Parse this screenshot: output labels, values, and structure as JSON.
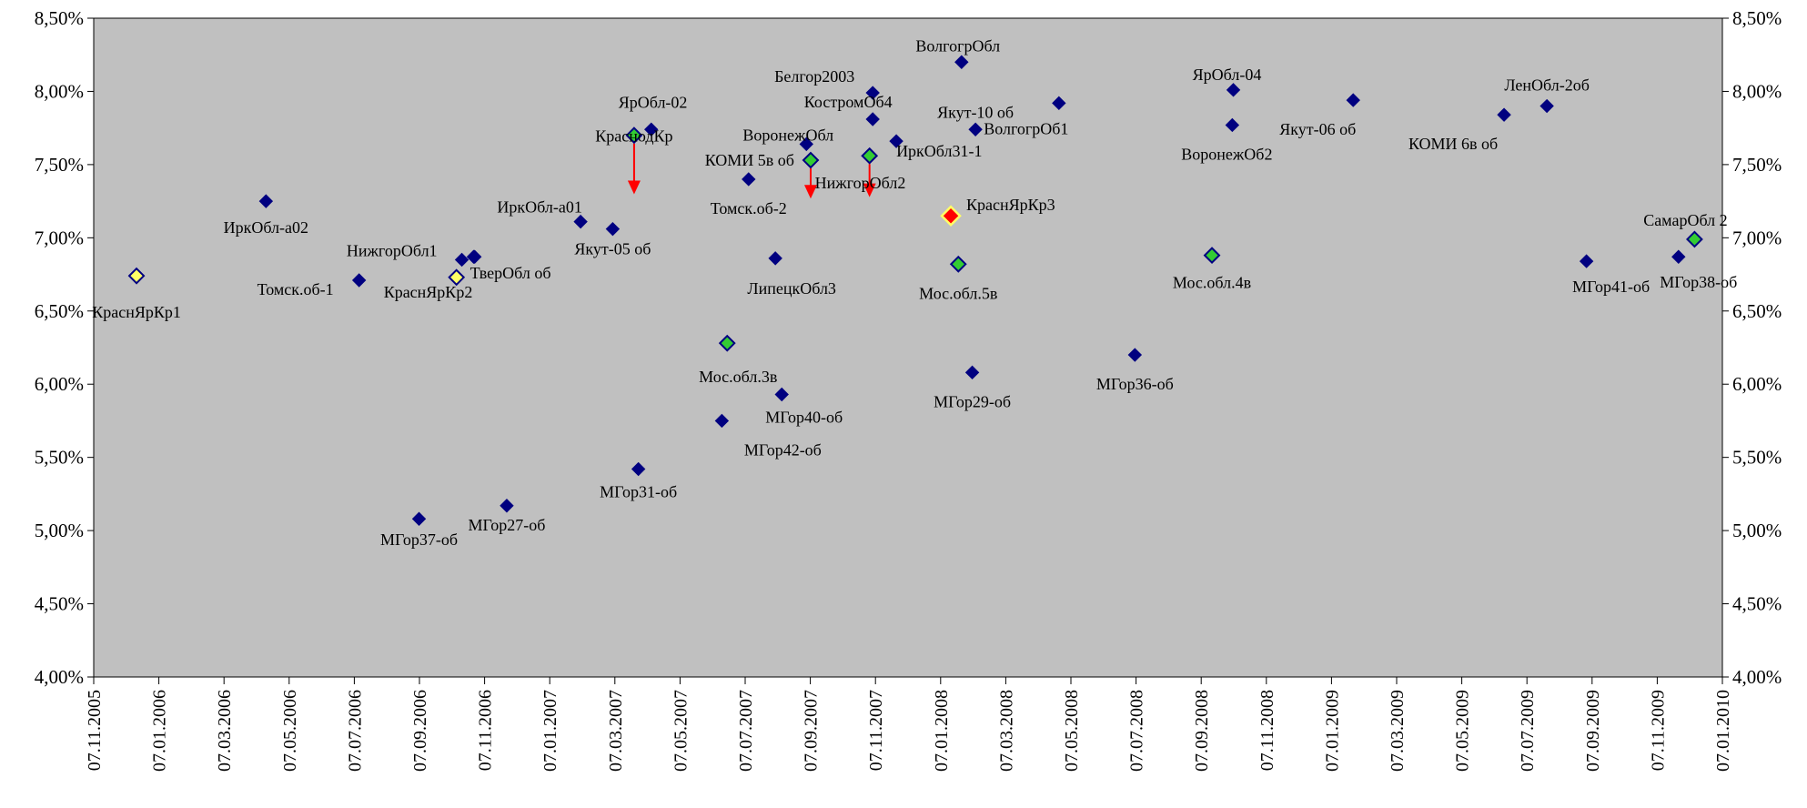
{
  "chart_data": {
    "type": "scatter",
    "x_axis": {
      "type": "date",
      "min": "2005-11-07",
      "max": "2010-01-07",
      "tick_labels": [
        "07.11.2005",
        "07.01.2006",
        "07.03.2006",
        "07.05.2006",
        "07.07.2006",
        "07.09.2006",
        "07.11.2006",
        "07.01.2007",
        "07.03.2007",
        "07.05.2007",
        "07.07.2007",
        "07.09.2007",
        "07.11.2007",
        "07.01.2008",
        "07.03.2008",
        "07.05.2008",
        "07.07.2008",
        "07.09.2008",
        "07.11.2008",
        "07.01.2009",
        "07.03.2009",
        "07.05.2009",
        "07.07.2009",
        "07.09.2009",
        "07.11.2009",
        "07.01.2010"
      ]
    },
    "y_axis": {
      "min": 4.0,
      "max": 8.5,
      "tick_labels": [
        "4,00%",
        "4,50%",
        "5,00%",
        "5,50%",
        "6,00%",
        "6,50%",
        "7,00%",
        "7,50%",
        "8,00%",
        "8,50%"
      ],
      "tick_values": [
        4.0,
        4.5,
        5.0,
        5.5,
        6.0,
        6.5,
        7.0,
        7.5,
        8.0,
        8.5
      ]
    },
    "colors": {
      "plot_background": "#c0c0c0",
      "navy": "#000080",
      "green": "#33cc33",
      "yellow": "#ffff66",
      "red": "#ff0000",
      "arrow": "#ff0000"
    },
    "points": [
      {
        "label": "КраснЯрКр1",
        "date": "2005-12-17",
        "y": 6.74,
        "style": "yellow"
      },
      {
        "label": "ИркОбл-а02",
        "date": "2006-04-17",
        "y": 7.25,
        "style": "navy"
      },
      {
        "label": "Томск.об-1",
        "date": "2006-07-13",
        "y": 6.71,
        "style": "navy"
      },
      {
        "label": "НижгорОбл1",
        "date": "2006-10-17",
        "y": 6.85,
        "style": "navy"
      },
      {
        "label": "",
        "date": "2006-10-28",
        "y": 6.87,
        "style": "navy"
      },
      {
        "label": "КраснЯрКр2",
        "date": "2006-10-12",
        "y": 6.73,
        "style": "yellow"
      },
      {
        "label": "ТверОбл об",
        "date": "2006-10-29",
        "y": 6.87,
        "style": "navy"
      },
      {
        "label": "ИркОбл-а01",
        "date": "2007-02-05",
        "y": 7.11,
        "style": "navy"
      },
      {
        "label": "МГор37-об",
        "date": "2006-09-07",
        "y": 5.08,
        "style": "navy"
      },
      {
        "label": "МГор27-об",
        "date": "2006-11-28",
        "y": 5.17,
        "style": "navy"
      },
      {
        "label": "Якут-05 об",
        "date": "2007-03-07",
        "y": 7.06,
        "style": "navy"
      },
      {
        "label": "МГор31-об",
        "date": "2007-03-31",
        "y": 5.42,
        "style": "navy"
      },
      {
        "label": "ЯрОбл-02",
        "date": "2007-04-12",
        "y": 7.74,
        "style": "navy"
      },
      {
        "label": "КраснодКр",
        "date": "2007-03-27",
        "y": 7.7,
        "style": "green",
        "arrow_to": 7.31
      },
      {
        "label": "МГор42-об",
        "date": "2007-06-17",
        "y": 5.75,
        "style": "navy"
      },
      {
        "label": "Мос.обл.3в",
        "date": "2007-06-22",
        "y": 6.28,
        "style": "green"
      },
      {
        "label": "Томск.об-2",
        "date": "2007-07-12",
        "y": 7.4,
        "style": "navy"
      },
      {
        "label": "ЛипецкОбл3",
        "date": "2007-08-06",
        "y": 6.86,
        "style": "navy"
      },
      {
        "label": "МГор40-об",
        "date": "2007-08-12",
        "y": 5.93,
        "style": "navy"
      },
      {
        "label": "ВоронежОбл",
        "date": "2007-09-04",
        "y": 7.64,
        "style": "navy"
      },
      {
        "label": "КОМИ 5в об",
        "date": "2007-09-08",
        "y": 7.53,
        "style": "green",
        "arrow_to": 7.28
      },
      {
        "label": "КостромОб4",
        "date": "2007-11-05",
        "y": 7.81,
        "style": "navy"
      },
      {
        "label": "Белгор2003",
        "date": "2007-11-05",
        "y": 7.99,
        "style": "navy"
      },
      {
        "label": "НижгорОбл2",
        "date": "2007-11-02",
        "y": 7.56,
        "style": "green",
        "arrow_to": 7.29
      },
      {
        "label": "",
        "date": "2007-11-27",
        "y": 7.66,
        "style": "navy"
      },
      {
        "label": "КраснЯрКр3",
        "date": "2008-01-17",
        "y": 7.15,
        "style": "red"
      },
      {
        "label": "ВолгогрОбл",
        "date": "2008-01-27",
        "y": 8.2,
        "style": "navy"
      },
      {
        "label": "Мос.обл.5в",
        "date": "2008-01-24",
        "y": 6.82,
        "style": "green"
      },
      {
        "label": "Якут-10 об",
        "date": "2008-02-09",
        "y": 7.74,
        "style": "navy"
      },
      {
        "label": "МГор29-об",
        "date": "2008-02-06",
        "y": 6.08,
        "style": "navy"
      },
      {
        "label": "ИркОбл31-1",
        "date": "",
        "y": null,
        "style": "none"
      },
      {
        "label": "ВолгогрОб1",
        "date": "2008-04-27",
        "y": 7.92,
        "style": "navy"
      },
      {
        "label": "МГор36-об",
        "date": "2008-07-07",
        "y": 6.2,
        "style": "navy"
      },
      {
        "label": "Мос.обл.4в",
        "date": "2008-09-17",
        "y": 6.88,
        "style": "green"
      },
      {
        "label": "ЯрОбл-04",
        "date": "2008-10-07",
        "y": 8.01,
        "style": "navy"
      },
      {
        "label": "ВоронежОб2",
        "date": "2008-10-06",
        "y": 7.77,
        "style": "navy"
      },
      {
        "label": "Якут-06 об",
        "date": "2009-01-27",
        "y": 7.94,
        "style": "navy"
      },
      {
        "label": "КОМИ 6в об",
        "date": "2009-06-17",
        "y": 7.84,
        "style": "navy"
      },
      {
        "label": "ЛенОбл-2об",
        "date": "2009-07-27",
        "y": 7.9,
        "style": "navy"
      },
      {
        "label": "МГор41-об",
        "date": "2009-09-02",
        "y": 6.84,
        "style": "navy"
      },
      {
        "label": "МГор38-об",
        "date": "2009-11-27",
        "y": 6.87,
        "style": "navy"
      },
      {
        "label": "СамарОбл 2",
        "date": "2009-12-12",
        "y": 6.99,
        "style": "green"
      }
    ]
  }
}
